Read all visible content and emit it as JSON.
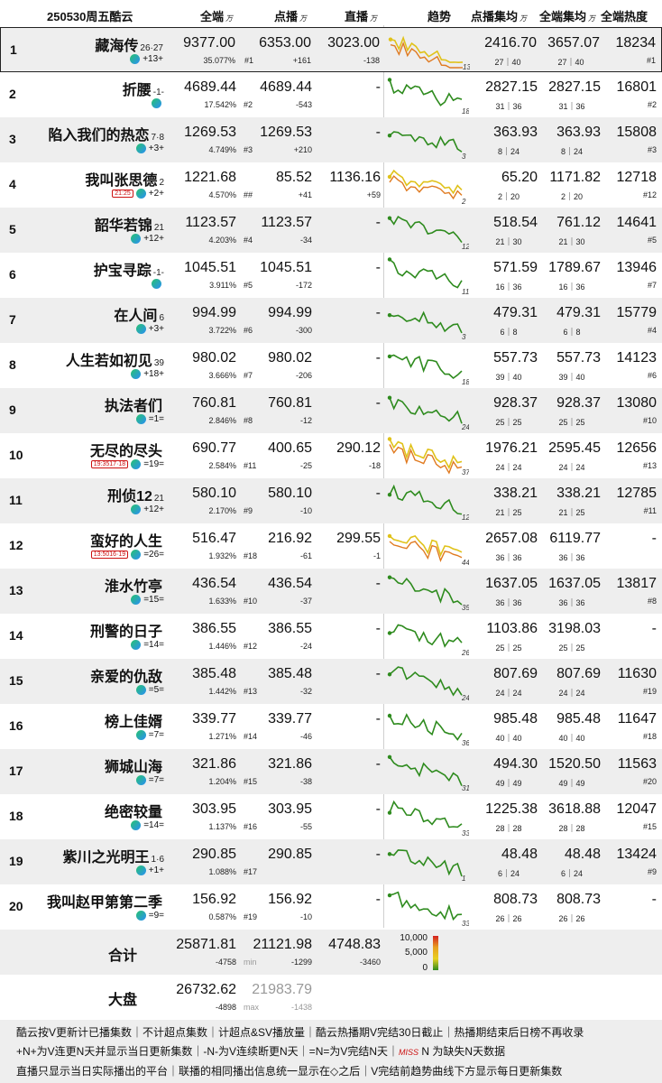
{
  "header": {
    "date_platform": "250530周五酷云",
    "col_all": "全端",
    "col_vod": "点播",
    "col_live": "直播",
    "unit": "万",
    "col_trend": "趋势",
    "col_vod_avg": "点播集均",
    "col_all_avg": "全端集均",
    "col_heat": "全端热度"
  },
  "rows": [
    {
      "rank": "1",
      "title": "藏海传",
      "ep": "26·27",
      "plat": "+13+",
      "all": "9377.00",
      "all_share": "35.077%",
      "vod": "6353.00",
      "vod_rank": "#1",
      "vod_delta": "+161",
      "live": "3023.00",
      "live_delta": "-138",
      "vavg": "2416.70",
      "vavg_sub": "27｜40",
      "aavg": "3657.07",
      "aavg_sub": "27｜40",
      "heat": "18234",
      "heat_rank": "#1",
      "trend_label": "13"
    },
    {
      "rank": "2",
      "title": "折腰",
      "ep": "-1-",
      "plat": "",
      "all": "4689.44",
      "all_share": "17.542%",
      "vod": "4689.44",
      "vod_rank": "#2",
      "vod_delta": "-543",
      "live": "-",
      "live_delta": "",
      "vavg": "2827.15",
      "vavg_sub": "31｜36",
      "aavg": "2827.15",
      "aavg_sub": "31｜36",
      "heat": "16801",
      "heat_rank": "#2",
      "trend_label": "18"
    },
    {
      "rank": "3",
      "title": "陷入我们的热恋",
      "ep": "7·8",
      "plat": "+3+",
      "all": "1269.53",
      "all_share": "4.749%",
      "vod": "1269.53",
      "vod_rank": "#3",
      "vod_delta": "+210",
      "live": "-",
      "live_delta": "",
      "vavg": "363.93",
      "vavg_sub": "8｜24",
      "aavg": "363.93",
      "aavg_sub": "8｜24",
      "heat": "15808",
      "heat_rank": "#3",
      "trend_label": "3"
    },
    {
      "rank": "4",
      "title": "我叫张思德",
      "ep": "2",
      "plat": "+2+",
      "all": "1221.68",
      "all_share": "4.570%",
      "vod": "85.52",
      "vod_rank": "##",
      "vod_delta": "+41",
      "live": "1136.16",
      "live_delta": "+59",
      "vavg": "65.20",
      "vavg_sub": "2｜20",
      "aavg": "1171.82",
      "aavg_sub": "2｜20",
      "heat": "12718",
      "heat_rank": "#12",
      "trend_label": "2",
      "tv_time": "21:25"
    },
    {
      "rank": "5",
      "title": "韶华若锦",
      "ep": "21",
      "plat": "+12+",
      "all": "1123.57",
      "all_share": "4.203%",
      "vod": "1123.57",
      "vod_rank": "#4",
      "vod_delta": "-34",
      "live": "-",
      "live_delta": "",
      "vavg": "518.54",
      "vavg_sub": "21｜30",
      "aavg": "761.12",
      "aavg_sub": "21｜30",
      "heat": "14641",
      "heat_rank": "#5",
      "trend_label": "12"
    },
    {
      "rank": "6",
      "title": "护宝寻踪",
      "ep": "-1-",
      "plat": "",
      "all": "1045.51",
      "all_share": "3.911%",
      "vod": "1045.51",
      "vod_rank": "#5",
      "vod_delta": "-172",
      "live": "-",
      "live_delta": "",
      "vavg": "571.59",
      "vavg_sub": "16｜36",
      "aavg": "1789.67",
      "aavg_sub": "16｜36",
      "heat": "13946",
      "heat_rank": "#7",
      "trend_label": "11"
    },
    {
      "rank": "7",
      "title": "在人间",
      "ep": "6",
      "plat": "+3+",
      "all": "994.99",
      "all_share": "3.722%",
      "vod": "994.99",
      "vod_rank": "#6",
      "vod_delta": "-300",
      "live": "-",
      "live_delta": "",
      "vavg": "479.31",
      "vavg_sub": "6｜8",
      "aavg": "479.31",
      "aavg_sub": "6｜8",
      "heat": "15779",
      "heat_rank": "#4",
      "trend_label": "3"
    },
    {
      "rank": "8",
      "title": "人生若如初见",
      "ep": "39",
      "plat": "+18+",
      "all": "980.02",
      "all_share": "3.666%",
      "vod": "980.02",
      "vod_rank": "#7",
      "vod_delta": "-206",
      "live": "-",
      "live_delta": "",
      "vavg": "557.73",
      "vavg_sub": "39｜40",
      "aavg": "557.73",
      "aavg_sub": "39｜40",
      "heat": "14123",
      "heat_rank": "#6",
      "trend_label": "18"
    },
    {
      "rank": "9",
      "title": "执法者们",
      "ep": "",
      "plat": "=1=",
      "all": "760.81",
      "all_share": "2.846%",
      "vod": "760.81",
      "vod_rank": "#8",
      "vod_delta": "-12",
      "live": "-",
      "live_delta": "",
      "vavg": "928.37",
      "vavg_sub": "25｜25",
      "aavg": "928.37",
      "aavg_sub": "25｜25",
      "heat": "13080",
      "heat_rank": "#10",
      "trend_label": "24"
    },
    {
      "rank": "10",
      "title": "无尽的尽头",
      "ep": "",
      "plat": "=19=",
      "all": "690.77",
      "all_share": "2.584%",
      "vod": "400.65",
      "vod_rank": "#11",
      "vod_delta": "-25",
      "live": "290.12",
      "live_delta": "-18",
      "vavg": "1976.21",
      "vavg_sub": "24｜24",
      "aavg": "2595.45",
      "aavg_sub": "24｜24",
      "heat": "12656",
      "heat_rank": "#13",
      "trend_label": "37",
      "tv_time": "19:35",
      "tv_ep": "17·18"
    },
    {
      "rank": "11",
      "title": "刑侦12",
      "ep": "21",
      "plat": "+12+",
      "all": "580.10",
      "all_share": "2.170%",
      "vod": "580.10",
      "vod_rank": "#9",
      "vod_delta": "-10",
      "live": "-",
      "live_delta": "",
      "vavg": "338.21",
      "vavg_sub": "21｜25",
      "aavg": "338.21",
      "aavg_sub": "21｜25",
      "heat": "12785",
      "heat_rank": "#11",
      "trend_label": "12"
    },
    {
      "rank": "12",
      "title": "蛮好的人生",
      "ep": "",
      "plat": "=26=",
      "all": "516.47",
      "all_share": "1.932%",
      "vod": "216.92",
      "vod_rank": "#18",
      "vod_delta": "-61",
      "live": "299.55",
      "live_delta": "-1",
      "vavg": "2657.08",
      "vavg_sub": "36｜36",
      "aavg": "6119.77",
      "aavg_sub": "36｜36",
      "heat": "-",
      "heat_rank": "",
      "trend_label": "44",
      "tv_time": "13:50",
      "tv_ep": "16·19"
    },
    {
      "rank": "13",
      "title": "淮水竹亭",
      "ep": "",
      "plat": "=15=",
      "all": "436.54",
      "all_share": "1.633%",
      "vod": "436.54",
      "vod_rank": "#10",
      "vod_delta": "-37",
      "live": "-",
      "live_delta": "",
      "vavg": "1637.05",
      "vavg_sub": "36｜36",
      "aavg": "1637.05",
      "aavg_sub": "36｜36",
      "heat": "13817",
      "heat_rank": "#8",
      "trend_label": "35"
    },
    {
      "rank": "14",
      "title": "刑警的日子",
      "ep": "",
      "plat": "=14=",
      "all": "386.55",
      "all_share": "1.446%",
      "vod": "386.55",
      "vod_rank": "#12",
      "vod_delta": "-24",
      "live": "-",
      "live_delta": "",
      "vavg": "1103.86",
      "vavg_sub": "25｜25",
      "aavg": "3198.03",
      "aavg_sub": "25｜25",
      "heat": "-",
      "heat_rank": "",
      "trend_label": "26"
    },
    {
      "rank": "15",
      "title": "亲爱的仇敌",
      "ep": "",
      "plat": "=5=",
      "all": "385.48",
      "all_share": "1.442%",
      "vod": "385.48",
      "vod_rank": "#13",
      "vod_delta": "-32",
      "live": "-",
      "live_delta": "",
      "vavg": "807.69",
      "vavg_sub": "24｜24",
      "aavg": "807.69",
      "aavg_sub": "24｜24",
      "heat": "11630",
      "heat_rank": "#19",
      "trend_label": "24"
    },
    {
      "rank": "16",
      "title": "榜上佳婿",
      "ep": "",
      "plat": "=7=",
      "all": "339.77",
      "all_share": "1.271%",
      "vod": "339.77",
      "vod_rank": "#14",
      "vod_delta": "-46",
      "live": "-",
      "live_delta": "",
      "vavg": "985.48",
      "vavg_sub": "40｜40",
      "aavg": "985.48",
      "aavg_sub": "40｜40",
      "heat": "11647",
      "heat_rank": "#18",
      "trend_label": "36"
    },
    {
      "rank": "17",
      "title": "狮城山海",
      "ep": "",
      "plat": "=7=",
      "all": "321.86",
      "all_share": "1.204%",
      "vod": "321.86",
      "vod_rank": "#15",
      "vod_delta": "-38",
      "live": "-",
      "live_delta": "",
      "vavg": "494.30",
      "vavg_sub": "49｜49",
      "aavg": "1520.50",
      "aavg_sub": "49｜49",
      "heat": "11563",
      "heat_rank": "#20",
      "trend_label": "31"
    },
    {
      "rank": "18",
      "title": "绝密较量",
      "ep": "",
      "plat": "=14=",
      "all": "303.95",
      "all_share": "1.137%",
      "vod": "303.95",
      "vod_rank": "#16",
      "vod_delta": "-55",
      "live": "-",
      "live_delta": "",
      "vavg": "1225.38",
      "vavg_sub": "28｜28",
      "aavg": "3618.88",
      "aavg_sub": "28｜28",
      "heat": "12047",
      "heat_rank": "#15",
      "trend_label": "33"
    },
    {
      "rank": "19",
      "title": "紫川之光明王",
      "ep": "1·6",
      "plat": "+1+",
      "all": "290.85",
      "all_share": "1.088%",
      "vod": "290.85",
      "vod_rank": "#17",
      "vod_delta": "",
      "live": "-",
      "live_delta": "",
      "vavg": "48.48",
      "vavg_sub": "6｜24",
      "aavg": "48.48",
      "aavg_sub": "6｜24",
      "heat": "13424",
      "heat_rank": "#9",
      "trend_label": "1"
    },
    {
      "rank": "20",
      "title": "我叫赵甲第第二季",
      "ep": "",
      "plat": "=9=",
      "all": "156.92",
      "all_share": "0.587%",
      "vod": "156.92",
      "vod_rank": "#19",
      "vod_delta": "-10",
      "live": "-",
      "live_delta": "",
      "vavg": "808.73",
      "vavg_sub": "26｜26",
      "aavg": "808.73",
      "aavg_sub": "26｜26",
      "heat": "-",
      "heat_rank": "",
      "trend_label": "33"
    }
  ],
  "summary": {
    "total_label": "合计",
    "total_all": "25871.81",
    "total_all_delta": "-4758",
    "total_vod": "21121.98",
    "total_vod_note": "min",
    "total_vod_delta": "-1299",
    "total_live": "4748.83",
    "total_live_delta": "-3460",
    "market_label": "大盘",
    "market_all": "26732.62",
    "market_all_delta": "-4898",
    "market_vod": "21983.79",
    "market_vod_note": "max",
    "market_vod_delta": "-1438",
    "legend_ticks": [
      "10,000",
      "5,000",
      "0"
    ]
  },
  "footer": {
    "line1": "酷云按V更新计已播集数｜不计超点集数｜计超点&SV播放量｜酷云热播期V完结30日截止｜热播期结束后日榜不再收录",
    "line2a": "+N+为V连更N天并显示当日更新集数｜-N-为V连续断更N天｜=N=为V完结N天｜",
    "miss": "MISS",
    "line2b": " N 为缺失N天数据",
    "line3": "直播只显示当日实际播出的平台｜联播的相同播出信息统一显示在◇之后｜V完结前趋势曲线下方显示每日更新集数"
  },
  "colors": {
    "line_green": "#2e8b1e",
    "line_yellow": "#e0c21a",
    "line_orange": "#e07a20",
    "shade": "#eeeeee"
  }
}
